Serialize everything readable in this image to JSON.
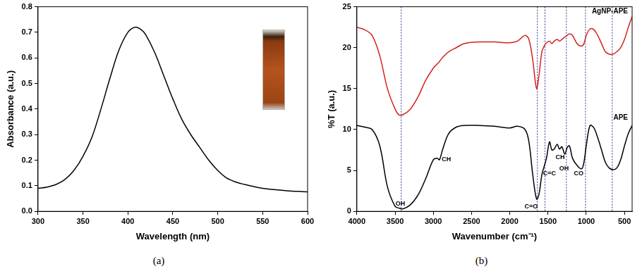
{
  "chart_data": [
    {
      "type": "line",
      "caption": "(a)",
      "x_label": "Wavelength (nm)",
      "y_label": "Absorbance (a.u.)",
      "x": [
        300,
        310,
        320,
        330,
        340,
        350,
        360,
        370,
        380,
        390,
        400,
        408,
        415,
        420,
        430,
        440,
        450,
        460,
        470,
        480,
        490,
        500,
        510,
        520,
        530,
        540,
        550,
        560,
        570,
        580,
        590,
        600
      ],
      "values": [
        0.09,
        0.095,
        0.105,
        0.125,
        0.16,
        0.215,
        0.29,
        0.4,
        0.52,
        0.63,
        0.7,
        0.72,
        0.71,
        0.69,
        0.62,
        0.53,
        0.44,
        0.36,
        0.3,
        0.25,
        0.2,
        0.16,
        0.13,
        0.115,
        0.105,
        0.097,
        0.09,
        0.086,
        0.083,
        0.08,
        0.078,
        0.076
      ],
      "color": "#000000",
      "xlim": [
        300,
        600
      ],
      "xticks": [
        300,
        350,
        400,
        450,
        500,
        550,
        600
      ],
      "ylim": [
        0,
        0.8
      ],
      "yticks": [
        {
          "value": 0,
          "label": "0.0"
        },
        0.1,
        0.2,
        0.3,
        0.4,
        0.5,
        0.6,
        0.7,
        0.8
      ],
      "grid": false,
      "legend": "none"
    },
    {
      "type": "line",
      "caption": "(b)",
      "x_label": "Wavenumber (cm⁻¹)",
      "y_label": "%T (a.u.)",
      "x": [
        4000,
        3900,
        3800,
        3700,
        3600,
        3500,
        3450,
        3400,
        3300,
        3200,
        3100,
        3000,
        2950,
        2920,
        2880,
        2800,
        2700,
        2600,
        2400,
        2200,
        2000,
        1900,
        1800,
        1750,
        1700,
        1650,
        1620,
        1580,
        1550,
        1520,
        1480,
        1450,
        1420,
        1380,
        1350,
        1320,
        1280,
        1250,
        1220,
        1180,
        1120,
        1060,
        1030,
        1000,
        950,
        900,
        850,
        800,
        750,
        700,
        650,
        600,
        550,
        500,
        450,
        400
      ],
      "series": [
        {
          "name": "AgNP-APE",
          "color": "#d42020",
          "values": [
            22.5,
            22.2,
            21.5,
            19,
            15,
            12.5,
            11.8,
            11.8,
            12.5,
            14,
            16,
            17.5,
            18,
            18.3,
            18.8,
            19.5,
            20,
            20.5,
            20.7,
            20.7,
            20.6,
            20.8,
            21.5,
            21,
            18.5,
            15,
            16.5,
            19.5,
            20.2,
            20.6,
            20.8,
            20.5,
            20.8,
            21,
            20.8,
            21,
            21.3,
            21.5,
            21.7,
            21.5,
            20.5,
            20.2,
            20.5,
            21.5,
            22.3,
            22.2,
            21.5,
            20.5,
            19.5,
            19.2,
            19.2,
            19.5,
            20,
            21,
            22.5,
            23.8
          ]
        },
        {
          "name": "APE",
          "color": "#000000",
          "values": [
            10.5,
            10.3,
            10,
            8,
            3,
            0.6,
            0.4,
            0.3,
            0.8,
            2,
            4,
            6.3,
            6.5,
            6.3,
            7.5,
            9.5,
            10.3,
            10.5,
            10.5,
            10.4,
            10.2,
            10.4,
            10,
            8.5,
            4.5,
            1.5,
            2,
            4.5,
            5.5,
            6.5,
            8.5,
            7.5,
            7.6,
            8.2,
            7.6,
            7.9,
            7,
            7.8,
            8,
            6.5,
            5.6,
            5.2,
            6,
            8,
            10.5,
            10.2,
            9,
            7.5,
            6,
            5.3,
            5.1,
            5.3,
            6.3,
            8,
            9.5,
            10.5
          ]
        }
      ],
      "annotations": [
        {
          "text": "OH",
          "x": 3430,
          "y": 0.9
        },
        {
          "text": "CH",
          "x": 2830,
          "y": 6.3
        },
        {
          "text": "C=O",
          "x": 1720,
          "y": 0.6
        },
        {
          "text": "C=C",
          "x": 1480,
          "y": 4.6
        },
        {
          "text": "CH",
          "x": 1340,
          "y": 6.6
        },
        {
          "text": "OH",
          "x": 1290,
          "y": 5.2
        },
        {
          "text": "CO",
          "x": 1100,
          "y": 4.6
        }
      ],
      "vlines": [
        3420,
        1640,
        1540,
        1260,
        1010,
        660
      ],
      "xlim": [
        4000,
        400
      ],
      "xticks": [
        4000,
        3500,
        3000,
        2500,
        2000,
        1500,
        1000,
        500
      ],
      "ylim": [
        0,
        25
      ],
      "yticks": [
        0,
        5,
        10,
        15,
        20,
        25
      ],
      "grid": false,
      "legend": "none"
    }
  ]
}
